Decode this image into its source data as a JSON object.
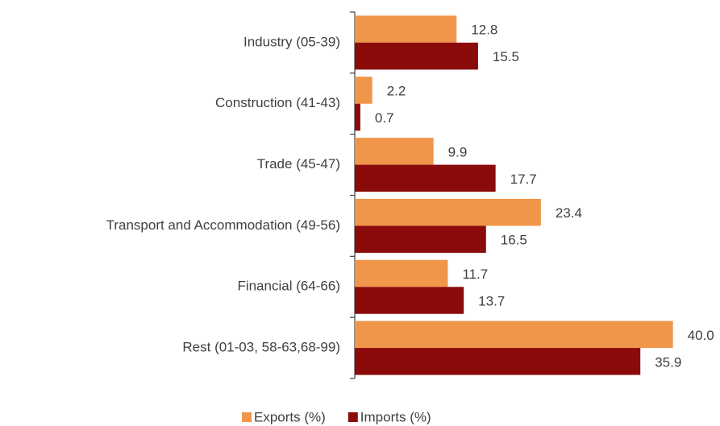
{
  "chart_data": {
    "type": "hbar",
    "categories": [
      "Industry (05-39)",
      "Construction (41-43)",
      "Trade (45-47)",
      "Transport and Accommodation (49-56)",
      "Financial (64-66)",
      "Rest (01-03, 58-63,68-99)"
    ],
    "series": [
      {
        "name": "Exports (%)",
        "color": "#f0964a",
        "values": [
          12.8,
          2.2,
          9.9,
          23.4,
          11.7,
          40.0
        ],
        "value_labels": [
          "12.8",
          "2.2",
          "9.9",
          "23.4",
          "11.7",
          "40.0"
        ]
      },
      {
        "name": "Imports (%)",
        "color": "#8b0a0a",
        "values": [
          15.5,
          0.7,
          17.7,
          16.5,
          13.7,
          35.9
        ],
        "value_labels": [
          "15.5",
          "0.7",
          "17.7",
          "16.5",
          "13.7",
          "35.9"
        ]
      }
    ],
    "xlim": [
      0,
      45
    ],
    "legend": "bottom"
  }
}
